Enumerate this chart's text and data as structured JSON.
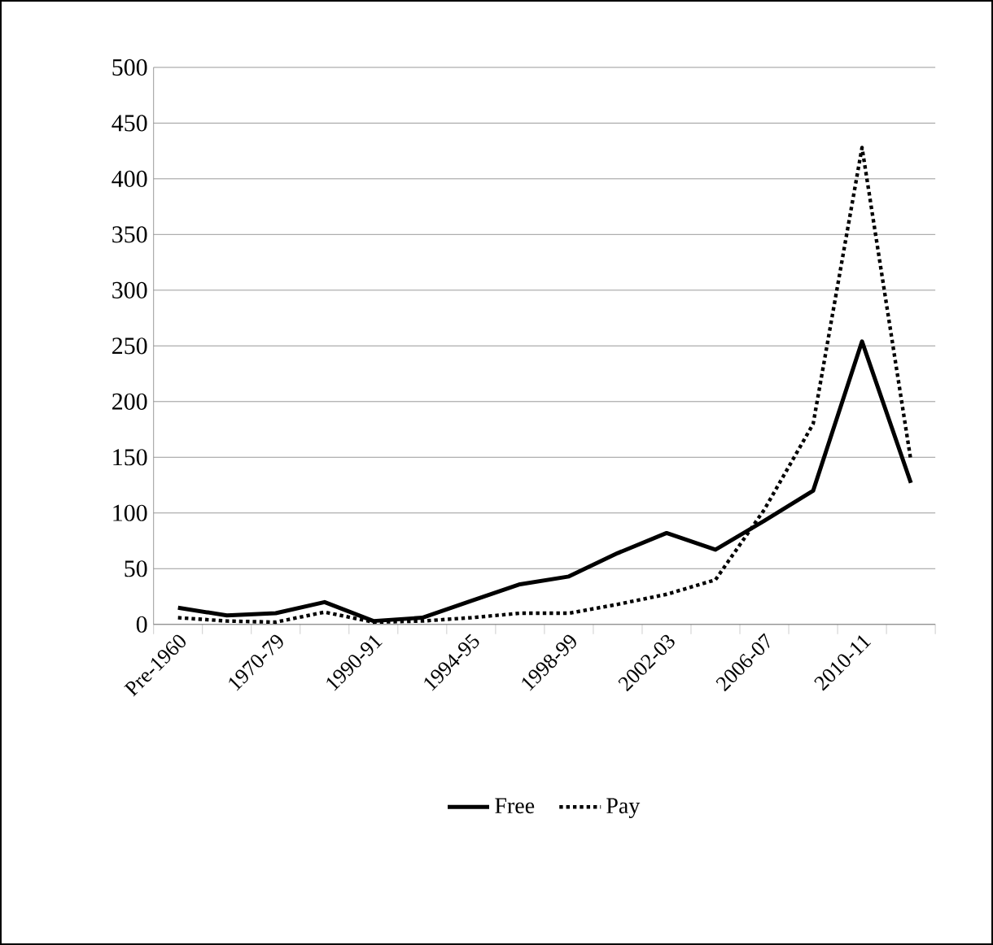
{
  "chart_data": {
    "type": "line",
    "categories": [
      "Pre-1960",
      null,
      "1970-79",
      null,
      "1990-91",
      null,
      "1994-95",
      null,
      "1998-99",
      null,
      "2002-03",
      null,
      "2006-07",
      null,
      "2010-11",
      null
    ],
    "series": [
      {
        "name": "Free",
        "color": "#000000",
        "line_style": "solid",
        "values": [
          15,
          8,
          10,
          20,
          3,
          6,
          21,
          36,
          43,
          64,
          82,
          67,
          93,
          120,
          254,
          127
        ]
      },
      {
        "name": "Pay",
        "color": "#000000",
        "line_style": "dotted",
        "values": [
          6,
          3,
          2,
          11,
          2,
          3,
          6,
          10,
          10,
          18,
          27,
          40,
          103,
          180,
          428,
          147
        ]
      }
    ],
    "ylim": [
      0,
      500
    ],
    "yticks": [
      0,
      50,
      100,
      150,
      200,
      250,
      300,
      350,
      400,
      450,
      500
    ],
    "grid": "y",
    "legend": "bottom",
    "marker": "none"
  }
}
